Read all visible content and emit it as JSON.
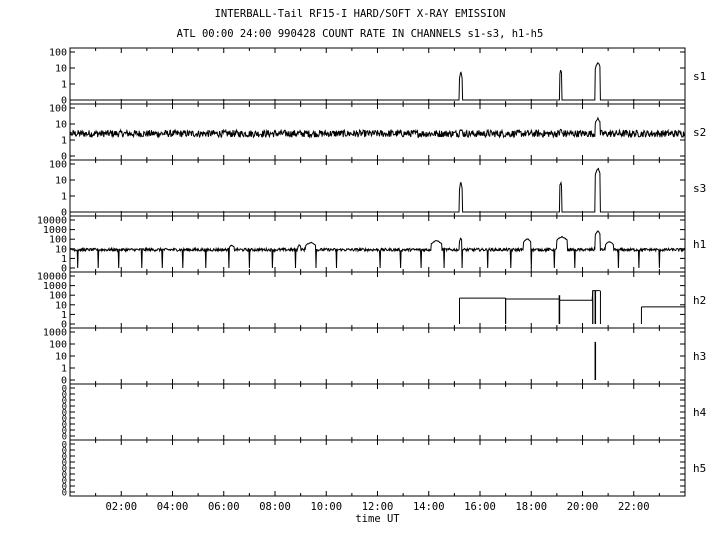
{
  "header": {
    "title": "INTERBALL-Tail RF15-I HARD/SOFT X-RAY EMISSION",
    "subtitle": "ATL 00:00 24:00 990428  COUNT RATE IN CHANNELS s1-s3, h1-h5"
  },
  "chart_data": {
    "type": "line",
    "title": "INTERBALL-Tail RF15-I HARD/SOFT X-RAY EMISSION",
    "subtitle": "ATL 00:00 24:00 990428  COUNT RATE IN CHANNELS s1-s3, h1-h5",
    "xlabel": "time UT",
    "xlim_hours": [
      0,
      24
    ],
    "x_ticks": [
      "02:00",
      "04:00",
      "06:00",
      "08:00",
      "10:00",
      "12:00",
      "14:00",
      "16:00",
      "18:00",
      "20:00",
      "22:00"
    ],
    "grid": false,
    "panels": [
      {
        "name": "s1",
        "scale": "log",
        "tick_labels": [
          "100",
          "10",
          "1",
          "0"
        ],
        "baseline": 0,
        "bursts": [
          {
            "start_h": 15.2,
            "end_h": 15.3,
            "peak": 6
          },
          {
            "start_h": 19.1,
            "end_h": 19.2,
            "peak": 8
          },
          {
            "start_h": 20.5,
            "end_h": 20.7,
            "peak": 25
          }
        ]
      },
      {
        "name": "s2",
        "scale": "log",
        "tick_labels": [
          "100",
          "10",
          "1",
          "0"
        ],
        "baseline": 2.5,
        "noise": "high",
        "bursts": [
          {
            "start_h": 15.2,
            "end_h": 15.3,
            "peak": 5
          },
          {
            "start_h": 19.1,
            "end_h": 19.2,
            "peak": 5
          },
          {
            "start_h": 20.5,
            "end_h": 20.7,
            "peak": 25
          }
        ]
      },
      {
        "name": "s3",
        "scale": "log",
        "tick_labels": [
          "100",
          "10",
          "1",
          "0"
        ],
        "baseline": 0,
        "bursts": [
          {
            "start_h": 15.2,
            "end_h": 15.3,
            "peak": 8
          },
          {
            "start_h": 19.1,
            "end_h": 19.2,
            "peak": 8
          },
          {
            "start_h": 20.5,
            "end_h": 20.7,
            "peak": 60
          }
        ]
      },
      {
        "name": "h1",
        "scale": "log",
        "tick_labels": [
          "10000",
          "1000",
          "100",
          "10",
          "1",
          "0"
        ],
        "baseline": 8,
        "noise": "medium",
        "dropout_hours": [
          0.3,
          1.1,
          1.9,
          2.8,
          3.6,
          4.4,
          5.3,
          6.2,
          7.0,
          7.9,
          8.8,
          9.6,
          10.4,
          12.1,
          12.9,
          13.7,
          14.6,
          15.3,
          16.3,
          17.2,
          18.0,
          18.9,
          19.7,
          21.4,
          22.2,
          23.0
        ],
        "bursts": [
          {
            "start_h": 6.2,
            "end_h": 6.4,
            "peak": 25
          },
          {
            "start_h": 8.9,
            "end_h": 9.0,
            "peak": 30
          },
          {
            "start_h": 9.2,
            "end_h": 9.6,
            "peak": 50
          },
          {
            "start_h": 14.1,
            "end_h": 14.5,
            "peak": 80
          },
          {
            "start_h": 15.2,
            "end_h": 15.3,
            "peak": 150
          },
          {
            "start_h": 17.7,
            "end_h": 18.0,
            "peak": 120
          },
          {
            "start_h": 19.0,
            "end_h": 19.4,
            "peak": 200
          },
          {
            "start_h": 20.5,
            "end_h": 20.7,
            "peak": 800
          },
          {
            "start_h": 20.9,
            "end_h": 21.2,
            "peak": 60
          }
        ]
      },
      {
        "name": "h2",
        "scale": "log",
        "tick_labels": [
          "10000",
          "1000",
          "100",
          "10",
          "1",
          "0"
        ],
        "segments": [
          {
            "start_h": 15.2,
            "end_h": 17.0,
            "value": 50
          },
          {
            "start_h": 17.0,
            "end_h": 19.1,
            "value": 40
          },
          {
            "start_h": 19.1,
            "end_h": 20.4,
            "value": 30
          },
          {
            "start_h": 20.4,
            "end_h": 20.7,
            "value": 300
          },
          {
            "start_h": 22.3,
            "end_h": 24.0,
            "value": 6
          }
        ],
        "spikes": [
          {
            "at_h": 19.1,
            "peak": 100
          },
          {
            "at_h": 20.5,
            "peak": 300
          }
        ]
      },
      {
        "name": "h3",
        "scale": "log",
        "tick_labels": [
          "1000",
          "100",
          "10",
          "1",
          "0"
        ],
        "spikes": [
          {
            "at_h": 20.5,
            "peak": 150
          }
        ]
      },
      {
        "name": "h4",
        "scale": "log",
        "tick_labels": [
          "0",
          "0",
          "0",
          "0",
          "0",
          "0",
          "0",
          "0",
          "0"
        ],
        "flat": true
      },
      {
        "name": "h5",
        "scale": "log",
        "tick_labels": [
          "0",
          "0",
          "0",
          "0",
          "0",
          "0",
          "0",
          "0",
          "0"
        ],
        "flat": true
      }
    ]
  }
}
